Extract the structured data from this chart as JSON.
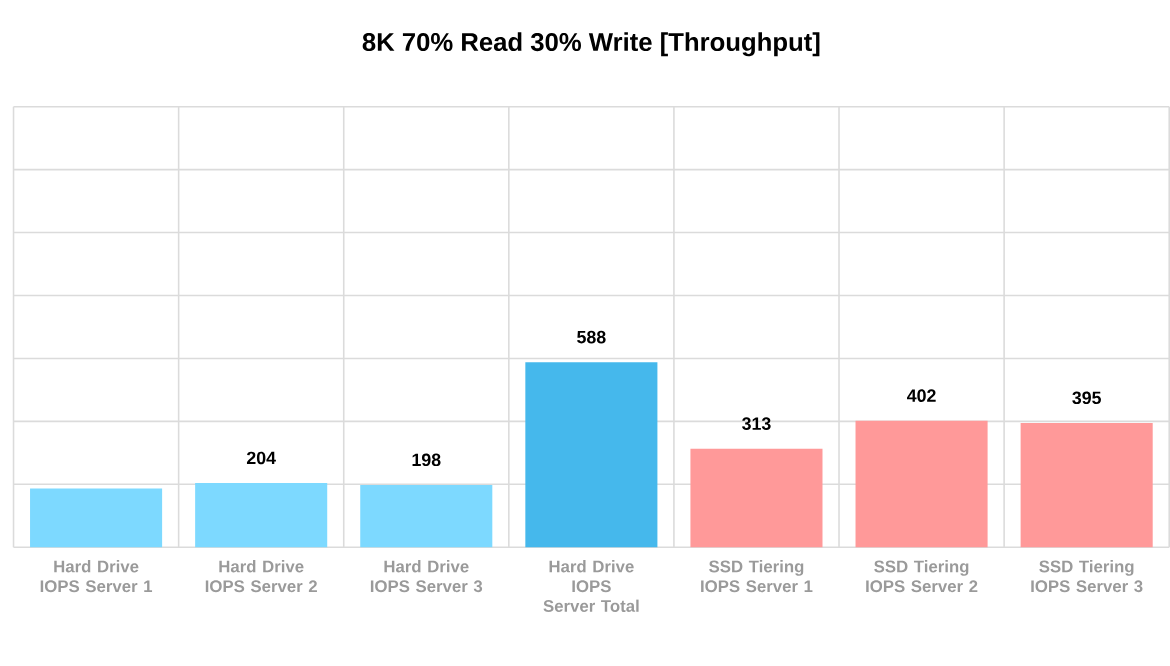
{
  "chart_data": {
    "type": "bar",
    "title": "8K 70% Read 30% Write [Throughput]",
    "categories": [
      "Hard Drive IOPS Server 1",
      "Hard Drive IOPS Server 2",
      "Hard Drive IOPS Server 3",
      "Hard Drive IOPS Server Total",
      "SSD Tiering IOPS Server 1",
      "SSD Tiering IOPS Server 2",
      "SSD Tiering IOPS Server 3"
    ],
    "values": [
      187,
      204,
      198,
      588,
      313,
      402,
      395
    ],
    "value_labels": [
      null,
      "204",
      "198",
      "588",
      "313",
      "402",
      "395"
    ],
    "colors": [
      "#7dd9ff",
      "#7dd9ff",
      "#7dd9ff",
      "#45b8ec",
      "#ff9999",
      "#ff9999",
      "#ff9999"
    ],
    "ylim": [
      0,
      1400
    ],
    "yticks": [
      {
        "value": 0,
        "label": null
      },
      {
        "value": 200,
        "label": null
      },
      {
        "value": 400,
        "label": null
      },
      {
        "value": 600,
        "label": null
      },
      {
        "value": 800,
        "label": null
      },
      {
        "value": 1000,
        "label": null
      },
      {
        "value": 1200,
        "label": null
      },
      {
        "value": 1400,
        "label": null
      }
    ],
    "grid": true
  }
}
